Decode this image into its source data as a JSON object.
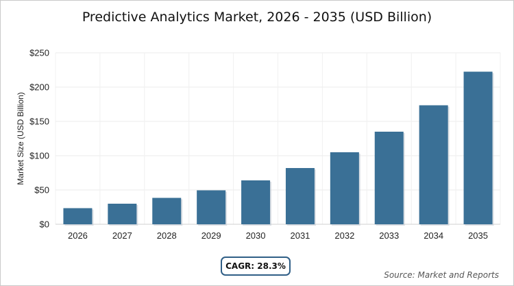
{
  "chart_data": {
    "type": "bar",
    "title": "Predictive Analytics Market, 2026 - 2035 (USD Billion)",
    "xlabel": "",
    "ylabel": "Market Size (USD Billion)",
    "categories": [
      "2026",
      "2027",
      "2028",
      "2029",
      "2030",
      "2031",
      "2032",
      "2033",
      "2034",
      "2035"
    ],
    "values": [
      23.5,
      30,
      38.5,
      49.5,
      64,
      82,
      105,
      135,
      173.5,
      222.5
    ],
    "ylim": [
      0,
      250
    ],
    "yticks": [
      0,
      50,
      100,
      150,
      200,
      250
    ],
    "ytick_labels": [
      "$0",
      "$50",
      "$100",
      "$150",
      "$200",
      "$250"
    ],
    "grid": true,
    "bar_color": "#3a7096"
  },
  "annotations": {
    "cagr": "CAGR: 28.3%",
    "source": "Source: Market and Reports"
  }
}
